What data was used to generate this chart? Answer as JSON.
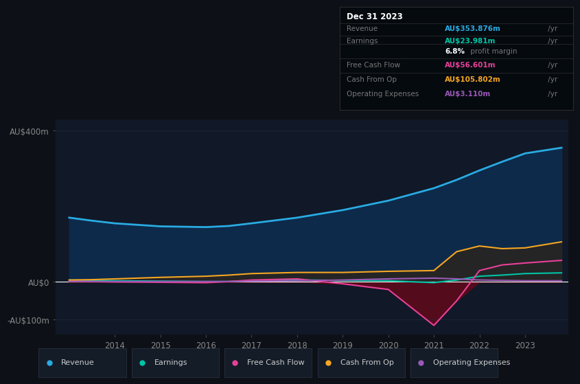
{
  "background_color": "#0d1117",
  "plot_bg_color": "#111827",
  "years": [
    2013.0,
    2013.5,
    2014.0,
    2015.0,
    2016.0,
    2016.5,
    2017.0,
    2018.0,
    2019.0,
    2020.0,
    2021.0,
    2021.5,
    2022.0,
    2022.5,
    2023.0,
    2023.8
  ],
  "revenue": [
    170,
    162,
    155,
    147,
    145,
    148,
    155,
    170,
    190,
    215,
    248,
    270,
    295,
    318,
    340,
    355
  ],
  "earnings": [
    5,
    4,
    3,
    2,
    1,
    1,
    3,
    5,
    4,
    3,
    -2,
    5,
    15,
    18,
    22,
    24
  ],
  "free_cash_flow": [
    2,
    1,
    0,
    -1,
    -2,
    1,
    5,
    8,
    -5,
    -20,
    -115,
    -50,
    30,
    45,
    50,
    57
  ],
  "cash_from_op": [
    5,
    6,
    8,
    12,
    15,
    18,
    22,
    25,
    25,
    28,
    30,
    80,
    95,
    88,
    90,
    106
  ],
  "operating_exp": [
    1,
    1,
    1,
    1,
    1,
    1,
    2,
    3,
    5,
    8,
    10,
    8,
    5,
    4,
    3,
    3
  ],
  "revenue_color": "#29abe2",
  "earnings_color": "#00c4a7",
  "free_cash_flow_color": "#e8409a",
  "cash_from_op_color": "#f5a623",
  "operating_exp_color": "#9b59b6",
  "revenue_fill": "#0d2a4a",
  "cfo_fill": "#2a2a2a",
  "fcf_neg_fill": "#5c0a1a",
  "ylim_min": -140,
  "ylim_max": 430,
  "yticks": [
    -100,
    0,
    400
  ],
  "ytick_labels": [
    "-AU$100m",
    "AU$0",
    "AU$400m"
  ],
  "xticks": [
    2014,
    2015,
    2016,
    2017,
    2018,
    2019,
    2020,
    2021,
    2022,
    2023
  ],
  "grid_color": "#1e2d3d",
  "legend_labels": [
    "Revenue",
    "Earnings",
    "Free Cash Flow",
    "Cash From Op",
    "Operating Expenses"
  ],
  "legend_colors": [
    "#29abe2",
    "#00c4a7",
    "#e8409a",
    "#f5a623",
    "#9b59b6"
  ],
  "info_box": {
    "title": "Dec 31 2023",
    "rows": [
      {
        "label": "Revenue",
        "value": "AU$353.876m",
        "value_color": "#29abe2"
      },
      {
        "label": "Earnings",
        "value": "AU$23.981m",
        "value_color": "#00c4a7"
      },
      {
        "label": "",
        "value": "6.8% profit margin",
        "value_color": "#aaaaaa"
      },
      {
        "label": "Free Cash Flow",
        "value": "AU$56.601m",
        "value_color": "#e8409a"
      },
      {
        "label": "Cash From Op",
        "value": "AU$105.802m",
        "value_color": "#f5a623"
      },
      {
        "label": "Operating Expenses",
        "value": "AU$3.110m",
        "value_color": "#9b59b6"
      }
    ]
  }
}
